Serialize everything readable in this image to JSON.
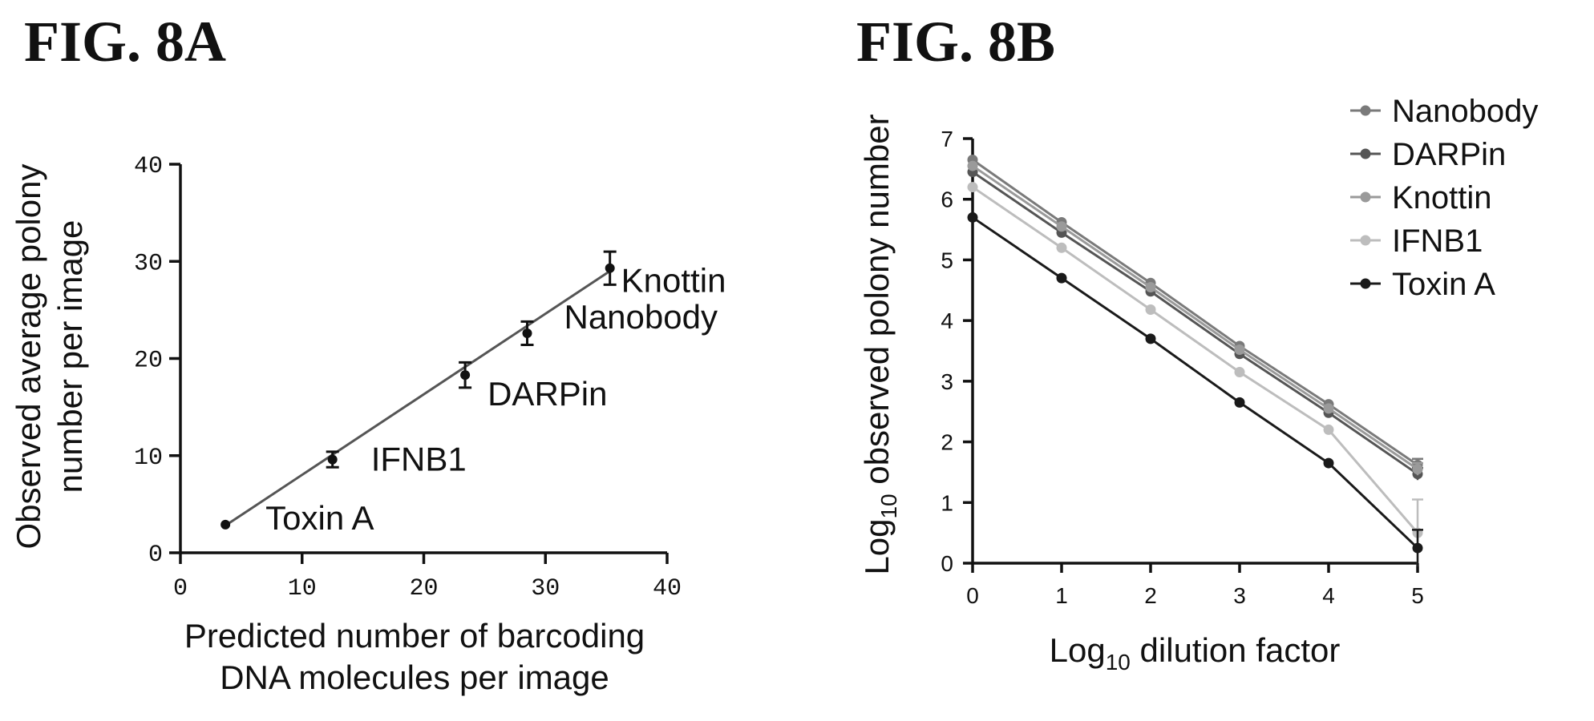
{
  "figures": {
    "a_title": "FIG. 8A",
    "b_title": "FIG. 8B"
  },
  "chart_data": [
    {
      "type": "scatter",
      "title": "FIG. 8A",
      "xlabel": [
        "Predicted number of barcoding",
        "DNA molecules per image"
      ],
      "ylabel": [
        "Observed average polony",
        "number per image"
      ],
      "xlim": [
        0,
        40
      ],
      "ylim": [
        0,
        40
      ],
      "xticks": [
        0,
        10,
        20,
        30,
        40
      ],
      "yticks": [
        0,
        10,
        20,
        30,
        40
      ],
      "grid": false,
      "points": [
        {
          "label": "Toxin A",
          "x": 3.7,
          "y": 2.9,
          "err": 0.3
        },
        {
          "label": "IFNB1",
          "x": 12.5,
          "y": 9.6,
          "err": 0.8
        },
        {
          "label": "DARPin",
          "x": 23.4,
          "y": 18.3,
          "err": 1.3
        },
        {
          "label": "Nanobody",
          "x": 28.5,
          "y": 22.6,
          "err": 1.2
        },
        {
          "label": "Knottin",
          "x": 35.3,
          "y": 29.3,
          "err": 1.7
        }
      ],
      "fit_line": {
        "x": [
          3.7,
          35.3
        ],
        "y": [
          2.8,
          29.0
        ]
      },
      "colors": {
        "points": "#111111",
        "line": "#555555"
      }
    },
    {
      "type": "line",
      "title": "FIG. 8B",
      "xlabel": {
        "base": "Log",
        "sub": "10",
        "rest": " dilution factor"
      },
      "ylabel": {
        "base": "Log",
        "sub": "10",
        "rest": " observed polony number"
      },
      "xlim": [
        0,
        5
      ],
      "ylim": [
        0,
        7
      ],
      "xticks": [
        0,
        1,
        2,
        3,
        4,
        5
      ],
      "yticks": [
        0,
        1,
        2,
        3,
        4,
        5,
        6,
        7
      ],
      "grid": false,
      "legend_position": "top-right",
      "x": [
        0,
        1,
        2,
        3,
        4,
        5
      ],
      "series": [
        {
          "name": "Nanobody",
          "color": "#7a7a7a",
          "values": [
            6.65,
            5.62,
            4.62,
            3.58,
            2.62,
            1.62
          ],
          "err": [
            0,
            0,
            0,
            0,
            0,
            0.1
          ]
        },
        {
          "name": "DARPin",
          "color": "#555555",
          "values": [
            6.45,
            5.45,
            4.48,
            3.45,
            2.48,
            1.47
          ],
          "err": [
            0,
            0,
            0,
            0,
            0,
            0.1
          ]
        },
        {
          "name": "Knottin",
          "color": "#9a9a9a",
          "values": [
            6.55,
            5.55,
            4.55,
            3.52,
            2.55,
            1.55
          ],
          "err": [
            0,
            0,
            0,
            0,
            0,
            0.1
          ]
        },
        {
          "name": "IFNB1",
          "color": "#bdbdbd",
          "values": [
            6.2,
            5.2,
            4.18,
            3.15,
            2.2,
            0.5
          ],
          "err": [
            0,
            0,
            0,
            0,
            0,
            0.55
          ]
        },
        {
          "name": "Toxin A",
          "color": "#1a1a1a",
          "values": [
            5.7,
            4.7,
            3.7,
            2.65,
            1.65,
            0.25
          ],
          "err": [
            0,
            0,
            0,
            0,
            0,
            0.3
          ]
        }
      ]
    }
  ]
}
